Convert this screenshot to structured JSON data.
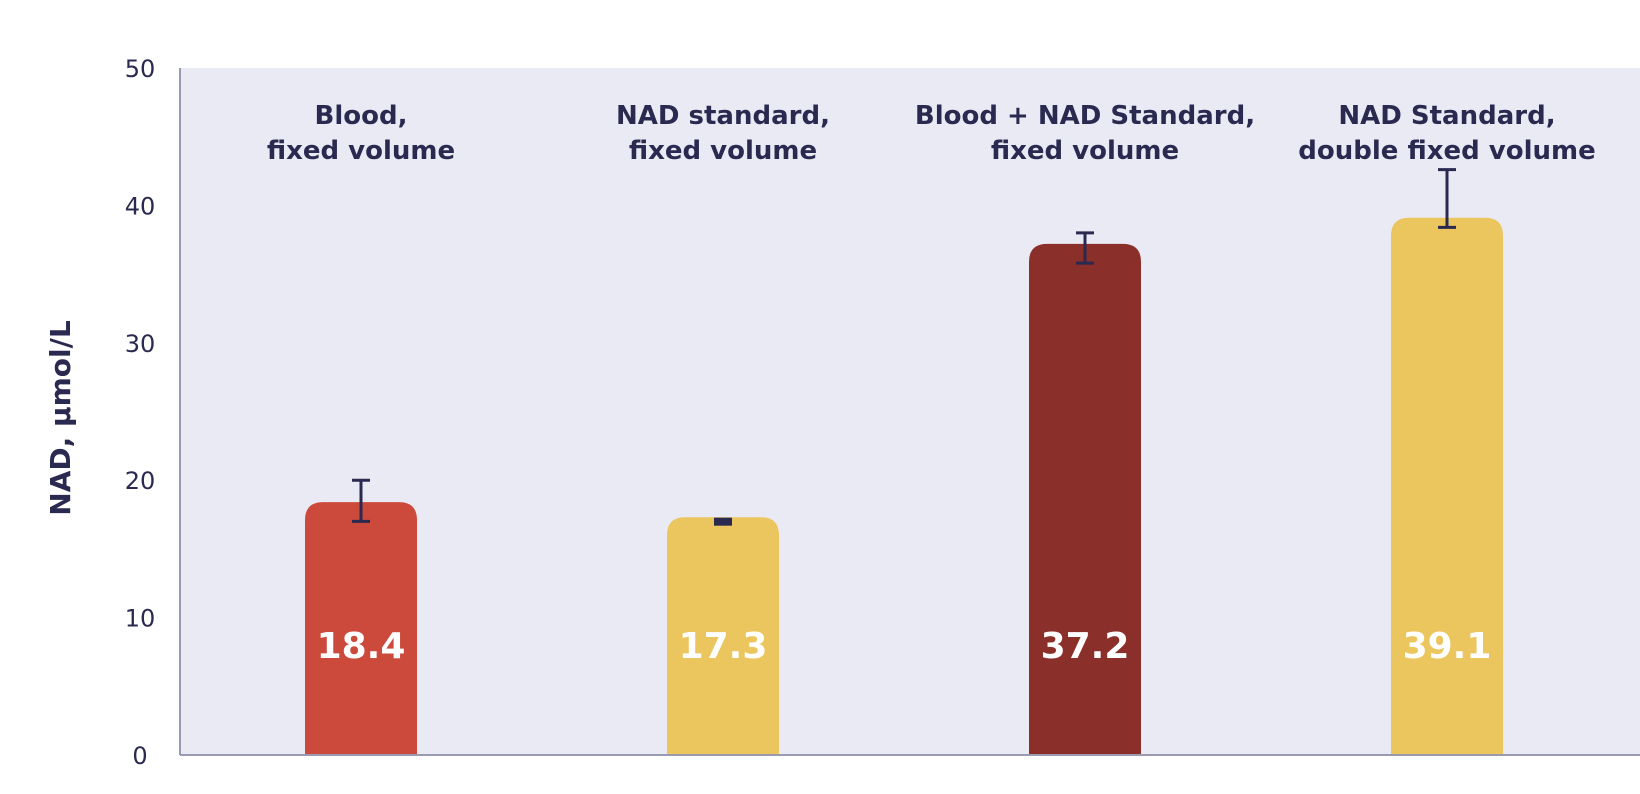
{
  "chart_data": {
    "type": "bar",
    "ylabel": "NAD, µmol/L",
    "xlabel": "",
    "title": "",
    "ylim": [
      0,
      50
    ],
    "yticks": [
      0,
      10,
      20,
      30,
      40,
      50
    ],
    "grid": false,
    "categories": [
      [
        "Blood,",
        "fixed volume"
      ],
      [
        "NAD standard,",
        "fixed volume"
      ],
      [
        "Blood + NAD Standard,",
        "fixed volume"
      ],
      [
        "NAD Standard,",
        "double fixed volume"
      ]
    ],
    "values": [
      18.4,
      17.3,
      37.2,
      39.1
    ],
    "value_labels": [
      "18.4",
      "17.3",
      "37.2",
      "39.1"
    ],
    "error_bars": [
      {
        "low": 17.0,
        "high": 20.0
      },
      {
        "low": 16.9,
        "high": 17.2
      },
      {
        "low": 35.8,
        "high": 38.0
      },
      {
        "low": 38.4,
        "high": 42.6
      }
    ],
    "colors": [
      "#cc4a3b",
      "#ebc55e",
      "#8b2f2a",
      "#ebc55e"
    ],
    "plot_background": "#eaeaf5",
    "axis_color": "#9a9ab0",
    "text_color": "#2a2950",
    "error_bar_color": "#2a2950"
  }
}
